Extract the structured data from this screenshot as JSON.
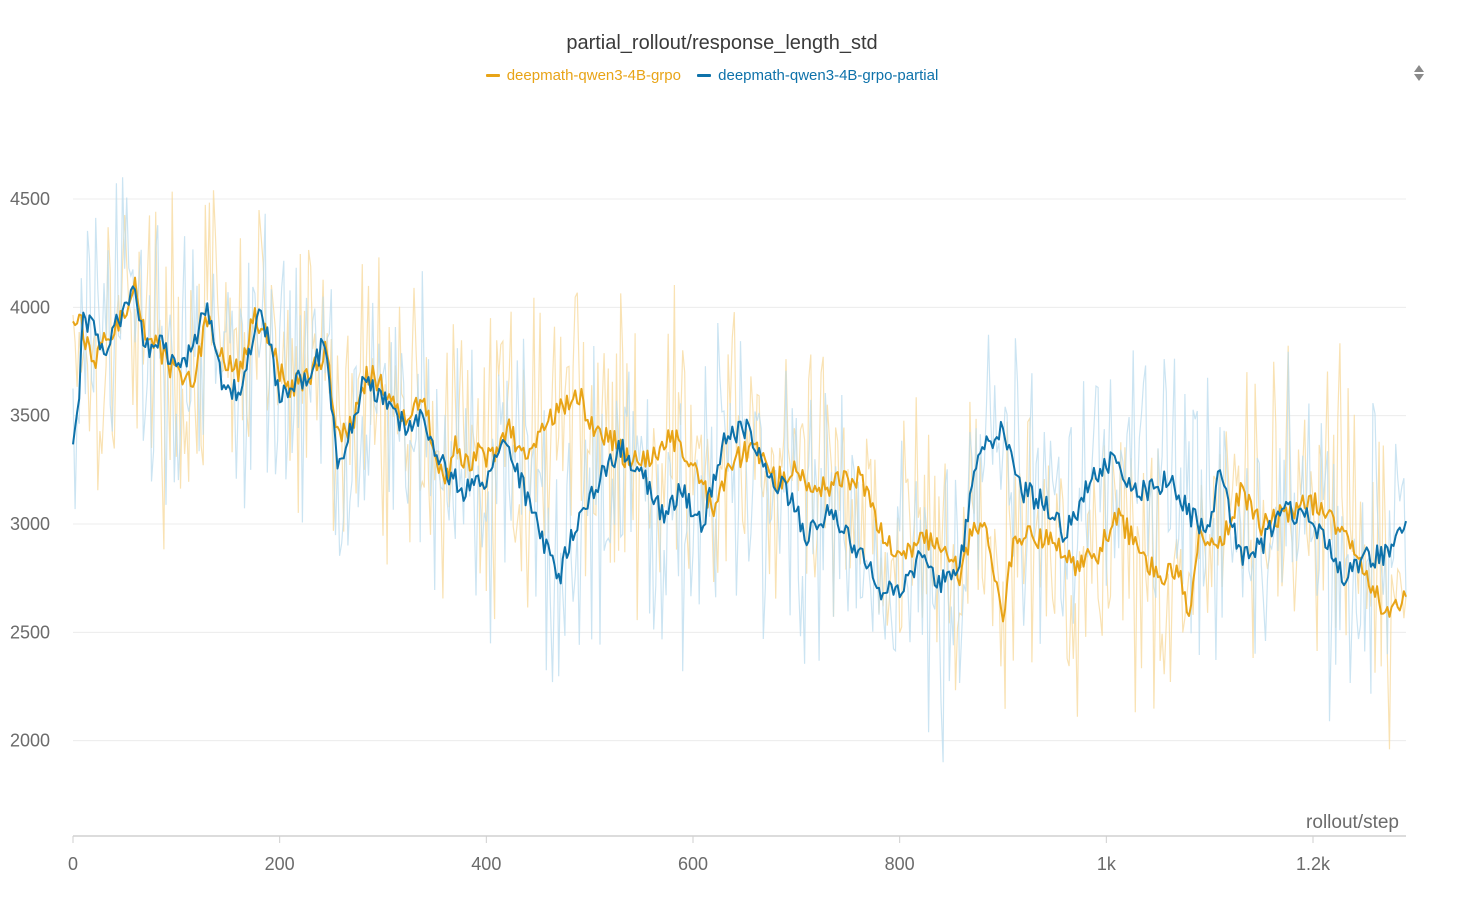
{
  "chart_data": {
    "type": "line",
    "title": "partial_rollout/response_length_std",
    "xlabel": "rollout/step",
    "ylabel": "",
    "xlim": [
      0,
      1290
    ],
    "ylim": [
      1560,
      4980
    ],
    "x_ticks": [
      {
        "value": 0,
        "label": "0"
      },
      {
        "value": 200,
        "label": "200"
      },
      {
        "value": 400,
        "label": "400"
      },
      {
        "value": 600,
        "label": "600"
      },
      {
        "value": 800,
        "label": "800"
      },
      {
        "value": 1000,
        "label": "1k"
      },
      {
        "value": 1200,
        "label": "1.2k"
      }
    ],
    "y_ticks": [
      {
        "value": 2000,
        "label": "2000"
      },
      {
        "value": 2500,
        "label": "2500"
      },
      {
        "value": 3000,
        "label": "3000"
      },
      {
        "value": 3500,
        "label": "3500"
      },
      {
        "value": 4000,
        "label": "4000"
      },
      {
        "value": 4500,
        "label": "4500"
      }
    ],
    "grid": true,
    "legend_position": "top-center",
    "raw_noise_amplitude": 480,
    "series": [
      {
        "name": "deepmath-qwen3-4B-grpo",
        "color": "#e8a417",
        "raw_color": "#f7d89a",
        "smoothed": [
          [
            0,
            3950
          ],
          [
            10,
            3900
          ],
          [
            20,
            3700
          ],
          [
            30,
            3850
          ],
          [
            50,
            3950
          ],
          [
            60,
            4100
          ],
          [
            70,
            3900
          ],
          [
            80,
            3850
          ],
          [
            90,
            3750
          ],
          [
            100,
            3700
          ],
          [
            115,
            3650
          ],
          [
            130,
            3950
          ],
          [
            145,
            3750
          ],
          [
            160,
            3700
          ],
          [
            175,
            3950
          ],
          [
            190,
            3850
          ],
          [
            200,
            3700
          ],
          [
            210,
            3620
          ],
          [
            230,
            3700
          ],
          [
            245,
            3800
          ],
          [
            255,
            3450
          ],
          [
            260,
            3400
          ],
          [
            270,
            3450
          ],
          [
            285,
            3700
          ],
          [
            300,
            3650
          ],
          [
            320,
            3500
          ],
          [
            340,
            3560
          ],
          [
            350,
            3350
          ],
          [
            360,
            3200
          ],
          [
            370,
            3350
          ],
          [
            380,
            3280
          ],
          [
            390,
            3320
          ],
          [
            410,
            3300
          ],
          [
            420,
            3450
          ],
          [
            440,
            3280
          ],
          [
            460,
            3500
          ],
          [
            480,
            3550
          ],
          [
            490,
            3600
          ],
          [
            500,
            3450
          ],
          [
            520,
            3400
          ],
          [
            540,
            3280
          ],
          [
            560,
            3320
          ],
          [
            580,
            3400
          ],
          [
            600,
            3300
          ],
          [
            620,
            3050
          ],
          [
            640,
            3300
          ],
          [
            660,
            3350
          ],
          [
            680,
            3200
          ],
          [
            700,
            3250
          ],
          [
            720,
            3150
          ],
          [
            740,
            3200
          ],
          [
            760,
            3220
          ],
          [
            780,
            3000
          ],
          [
            800,
            2820
          ],
          [
            820,
            2950
          ],
          [
            840,
            2900
          ],
          [
            860,
            2750
          ],
          [
            870,
            3000
          ],
          [
            880,
            3000
          ],
          [
            890,
            2820
          ],
          [
            900,
            2600
          ],
          [
            910,
            2900
          ],
          [
            930,
            2950
          ],
          [
            950,
            2900
          ],
          [
            970,
            2800
          ],
          [
            990,
            2850
          ],
          [
            1010,
            3050
          ],
          [
            1030,
            2900
          ],
          [
            1050,
            2750
          ],
          [
            1070,
            2800
          ],
          [
            1080,
            2600
          ],
          [
            1090,
            2950
          ],
          [
            1110,
            2900
          ],
          [
            1130,
            3150
          ],
          [
            1150,
            2980
          ],
          [
            1170,
            3050
          ],
          [
            1190,
            3100
          ],
          [
            1210,
            3080
          ],
          [
            1230,
            2950
          ],
          [
            1250,
            2800
          ],
          [
            1270,
            2580
          ],
          [
            1290,
            2650
          ]
        ]
      },
      {
        "name": "deepmath-qwen3-4B-grpo-partial",
        "color": "#0e72aa",
        "raw_color": "#b9dbed",
        "smoothed": [
          [
            0,
            3380
          ],
          [
            5,
            3550
          ],
          [
            10,
            3950
          ],
          [
            20,
            3900
          ],
          [
            30,
            3800
          ],
          [
            45,
            3950
          ],
          [
            60,
            4100
          ],
          [
            70,
            3800
          ],
          [
            85,
            3850
          ],
          [
            100,
            3700
          ],
          [
            115,
            3800
          ],
          [
            130,
            4000
          ],
          [
            145,
            3650
          ],
          [
            160,
            3600
          ],
          [
            180,
            3950
          ],
          [
            190,
            3850
          ],
          [
            200,
            3550
          ],
          [
            210,
            3650
          ],
          [
            230,
            3700
          ],
          [
            245,
            3850
          ],
          [
            255,
            3300
          ],
          [
            265,
            3350
          ],
          [
            280,
            3650
          ],
          [
            300,
            3600
          ],
          [
            320,
            3450
          ],
          [
            340,
            3480
          ],
          [
            360,
            3250
          ],
          [
            380,
            3150
          ],
          [
            400,
            3200
          ],
          [
            420,
            3400
          ],
          [
            440,
            3100
          ],
          [
            460,
            2850
          ],
          [
            470,
            2750
          ],
          [
            490,
            3050
          ],
          [
            510,
            3200
          ],
          [
            530,
            3350
          ],
          [
            550,
            3250
          ],
          [
            570,
            3050
          ],
          [
            590,
            3150
          ],
          [
            610,
            3000
          ],
          [
            630,
            3400
          ],
          [
            650,
            3450
          ],
          [
            670,
            3250
          ],
          [
            690,
            3150
          ],
          [
            710,
            2950
          ],
          [
            730,
            3050
          ],
          [
            750,
            2950
          ],
          [
            770,
            2800
          ],
          [
            780,
            2700
          ],
          [
            800,
            2700
          ],
          [
            820,
            2850
          ],
          [
            840,
            2720
          ],
          [
            860,
            2850
          ],
          [
            870,
            3200
          ],
          [
            880,
            3350
          ],
          [
            900,
            3450
          ],
          [
            920,
            3150
          ],
          [
            940,
            3100
          ],
          [
            960,
            2950
          ],
          [
            980,
            3150
          ],
          [
            1000,
            3300
          ],
          [
            1020,
            3200
          ],
          [
            1040,
            3150
          ],
          [
            1060,
            3200
          ],
          [
            1080,
            3050
          ],
          [
            1100,
            2950
          ],
          [
            1110,
            3250
          ],
          [
            1130,
            2850
          ],
          [
            1150,
            2900
          ],
          [
            1170,
            3050
          ],
          [
            1190,
            3050
          ],
          [
            1210,
            2950
          ],
          [
            1230,
            2750
          ],
          [
            1250,
            2850
          ],
          [
            1270,
            2850
          ],
          [
            1290,
            3000
          ]
        ]
      }
    ]
  }
}
